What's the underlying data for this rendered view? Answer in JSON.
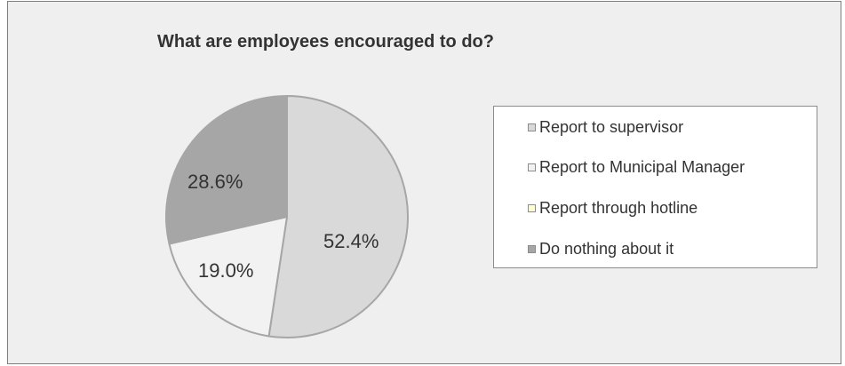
{
  "chart_data": {
    "type": "pie",
    "title": "What are employees encouraged to do?",
    "legend_position": "right",
    "series": [
      {
        "name": "Report to supervisor",
        "value": 52.4,
        "label": "52.4%",
        "color": "#d9d9d9"
      },
      {
        "name": "Report to Municipal Manager",
        "value": 19.0,
        "label": "19.0%",
        "color": "#f2f2f2"
      },
      {
        "name": "Report through hotline",
        "value": 0.0,
        "label": "",
        "color": "#ffffcc"
      },
      {
        "name": "Do nothing about it",
        "value": 28.6,
        "label": "28.6%",
        "color": "#a6a6a6"
      }
    ],
    "colors": {
      "plot_background": "#efefef",
      "border": "#a6a6a6"
    }
  }
}
